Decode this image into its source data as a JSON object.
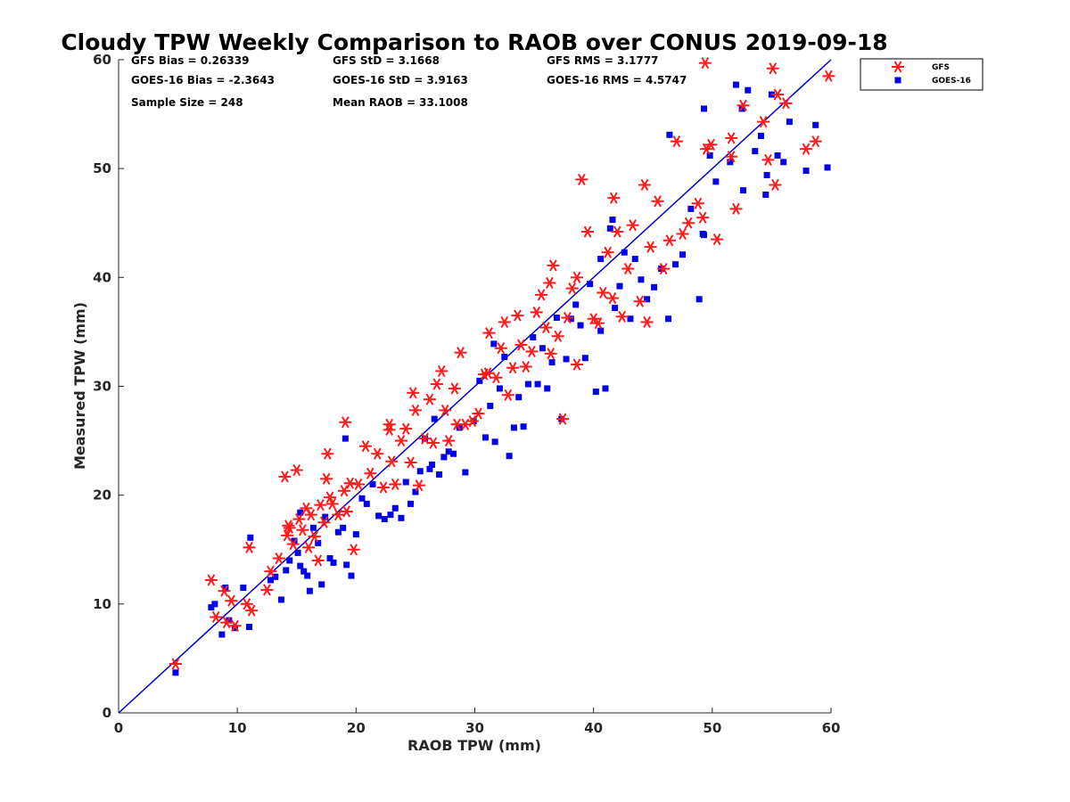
{
  "chart_data": {
    "type": "scatter",
    "title": "Cloudy TPW Weekly Comparison to RAOB over CONUS 2019-09-18",
    "xlabel": "RAOB TPW (mm)",
    "ylabel": "Measured TPW (mm)",
    "xlim": [
      0,
      60
    ],
    "ylim": [
      0,
      60
    ],
    "xticks": [
      0,
      10,
      20,
      30,
      40,
      50,
      60
    ],
    "yticks": [
      0,
      10,
      20,
      30,
      40,
      50,
      60
    ],
    "grid": false,
    "legend_position": "outside top-right",
    "stats": [
      "GFS Bias = 0.26339",
      "GFS StD = 3.1668",
      "GFS RMS = 3.1777",
      "GOES-16 Bias = -2.3643",
      "GOES-16 StD = 3.9163",
      "GOES-16 RMS = 4.5747",
      "Sample Size = 248",
      "Mean RAOB = 33.1008"
    ],
    "reference_line": {
      "x": [
        0,
        60
      ],
      "y": [
        0,
        60
      ],
      "color": "#0000cc"
    },
    "series": [
      {
        "name": "GFS",
        "marker": "asterisk",
        "color": "#ff1a1a",
        "x": [
          4.8,
          7.8,
          8.2,
          8.9,
          9.1,
          9.5,
          9.8,
          10.8,
          11.0,
          11.2,
          12.5,
          12.8,
          13.5,
          14.0,
          14.2,
          14.3,
          14.7,
          15.0,
          15.2,
          15.5,
          15.8,
          16.0,
          16.2,
          16.5,
          16.8,
          17.0,
          17.3,
          17.5,
          17.8,
          18.0,
          18.5,
          19.0,
          19.2,
          19.5,
          19.8,
          20.2,
          20.8,
          21.2,
          21.8,
          22.3,
          22.8,
          23.0,
          23.3,
          23.8,
          24.2,
          24.8,
          25.0,
          25.3,
          25.8,
          26.2,
          26.5,
          26.8,
          27.2,
          27.5,
          27.8,
          28.3,
          28.8,
          29.2,
          29.8,
          30.3,
          30.8,
          31.2,
          31.8,
          32.2,
          32.5,
          32.8,
          33.2,
          33.6,
          33.9,
          34.3,
          34.8,
          35.2,
          35.6,
          36.0,
          36.3,
          36.6,
          37.0,
          37.4,
          37.8,
          38.2,
          38.6,
          39.0,
          39.5,
          40.0,
          40.4,
          40.8,
          41.2,
          41.6,
          42.0,
          42.4,
          42.9,
          43.3,
          43.9,
          44.3,
          44.8,
          45.4,
          45.9,
          46.4,
          47.0,
          47.5,
          48.0,
          48.8,
          49.2,
          49.5,
          49.9,
          50.4,
          51.6,
          52.0,
          52.6,
          54.3,
          54.7,
          55.1,
          55.5,
          56.2,
          57.9,
          58.7,
          59.8,
          49.4,
          55.3,
          51.6,
          38.6,
          19.1,
          14.4,
          17.6,
          22.8,
          24.6,
          28.5,
          31.1,
          36.4,
          41.7,
          44.5
        ],
        "y": [
          4.5,
          12.2,
          8.8,
          11.2,
          8.3,
          10.3,
          8.0,
          10.0,
          15.2,
          9.4,
          11.3,
          13.0,
          14.2,
          21.7,
          16.3,
          17.2,
          15.5,
          22.3,
          17.8,
          16.8,
          18.8,
          15.2,
          18.2,
          16.2,
          14.0,
          19.1,
          17.5,
          21.5,
          19.8,
          19.2,
          18.2,
          20.4,
          18.5,
          21.1,
          15.0,
          21.0,
          24.5,
          22.0,
          23.8,
          20.7,
          26.5,
          23.1,
          21.0,
          25.0,
          26.1,
          29.4,
          27.8,
          20.9,
          25.2,
          28.8,
          24.8,
          30.2,
          31.4,
          27.8,
          25.0,
          29.8,
          33.1,
          26.5,
          26.8,
          27.5,
          31.1,
          34.9,
          30.8,
          33.5,
          35.9,
          29.2,
          31.7,
          36.5,
          33.8,
          31.8,
          33.2,
          36.8,
          38.4,
          35.4,
          39.5,
          41.1,
          34.6,
          27.0,
          36.3,
          39.0,
          32.0,
          49.0,
          44.2,
          36.2,
          35.8,
          38.6,
          42.3,
          38.1,
          44.2,
          36.4,
          40.8,
          44.8,
          37.8,
          48.5,
          42.8,
          47.0,
          40.8,
          43.4,
          52.5,
          44.0,
          45.0,
          46.8,
          45.5,
          51.8,
          52.2,
          43.5,
          52.8,
          46.3,
          55.8,
          54.3,
          50.8,
          59.2,
          56.8,
          56.0,
          51.8,
          52.5,
          58.5,
          59.7,
          48.5,
          51.1,
          40.0,
          26.7,
          17.0,
          23.8,
          26.0,
          23.0,
          26.5,
          31.2,
          33.0,
          47.3,
          35.9
        ]
      },
      {
        "name": "GOES-16",
        "marker": "square",
        "color": "#0000ee",
        "x": [
          4.8,
          7.8,
          8.1,
          8.7,
          9.0,
          9.3,
          9.8,
          10.5,
          11.0,
          11.1,
          12.8,
          13.2,
          13.7,
          14.1,
          14.4,
          14.8,
          15.1,
          15.3,
          15.6,
          15.9,
          16.1,
          16.4,
          16.8,
          17.1,
          17.4,
          17.8,
          18.1,
          18.5,
          18.9,
          19.2,
          19.6,
          20.0,
          20.5,
          20.9,
          21.4,
          21.9,
          22.4,
          22.9,
          23.3,
          23.8,
          24.2,
          24.6,
          25.0,
          25.4,
          25.8,
          26.2,
          26.6,
          27.0,
          27.4,
          27.8,
          28.2,
          28.7,
          29.2,
          29.9,
          30.4,
          30.9,
          31.3,
          31.7,
          32.1,
          32.5,
          32.9,
          33.3,
          33.7,
          34.1,
          34.5,
          34.9,
          35.3,
          35.7,
          36.1,
          36.5,
          36.9,
          37.3,
          37.7,
          38.1,
          38.5,
          38.9,
          39.3,
          39.7,
          40.2,
          40.6,
          41.0,
          41.4,
          41.8,
          42.2,
          42.6,
          43.1,
          43.5,
          44.0,
          44.5,
          45.1,
          45.7,
          46.3,
          46.9,
          47.5,
          48.2,
          48.9,
          49.3,
          49.8,
          50.3,
          51.5,
          52.0,
          52.5,
          53.0,
          53.6,
          54.1,
          54.6,
          55.0,
          55.5,
          56.0,
          56.5,
          57.9,
          58.7,
          59.7,
          49.3,
          52.6,
          46.4,
          40.6,
          26.4,
          15.3,
          19.1,
          31.6,
          41.6,
          49.2,
          54.5
        ],
        "y": [
          3.7,
          9.7,
          10.0,
          7.2,
          11.5,
          8.5,
          7.8,
          11.5,
          7.9,
          16.1,
          12.2,
          12.5,
          10.4,
          13.1,
          14.0,
          15.8,
          14.7,
          13.5,
          13.0,
          12.6,
          11.2,
          17.0,
          15.6,
          11.8,
          18.0,
          14.2,
          13.8,
          16.6,
          17.0,
          13.6,
          12.6,
          16.4,
          19.7,
          19.2,
          21.0,
          18.1,
          17.8,
          18.2,
          18.8,
          17.9,
          21.2,
          19.2,
          20.3,
          22.2,
          25.2,
          22.4,
          27.0,
          21.9,
          23.5,
          24.0,
          23.8,
          26.2,
          22.1,
          26.8,
          30.5,
          25.3,
          28.2,
          24.9,
          29.8,
          32.7,
          23.6,
          26.2,
          29.0,
          26.3,
          30.2,
          34.5,
          30.2,
          33.5,
          29.8,
          32.2,
          36.3,
          27.0,
          32.5,
          36.2,
          37.5,
          35.6,
          32.6,
          39.4,
          29.5,
          35.1,
          29.8,
          44.5,
          37.2,
          39.2,
          42.3,
          36.2,
          41.7,
          39.8,
          38.0,
          39.1,
          40.8,
          36.2,
          41.2,
          42.1,
          46.3,
          38.0,
          43.9,
          51.2,
          48.8,
          50.6,
          57.7,
          55.5,
          57.2,
          51.6,
          53.0,
          49.4,
          56.8,
          51.2,
          50.6,
          54.3,
          49.8,
          54.0,
          50.1,
          55.5,
          48.0,
          53.1,
          41.7,
          22.8,
          18.4,
          25.2,
          33.9,
          45.3,
          44.0,
          47.6
        ]
      }
    ]
  }
}
